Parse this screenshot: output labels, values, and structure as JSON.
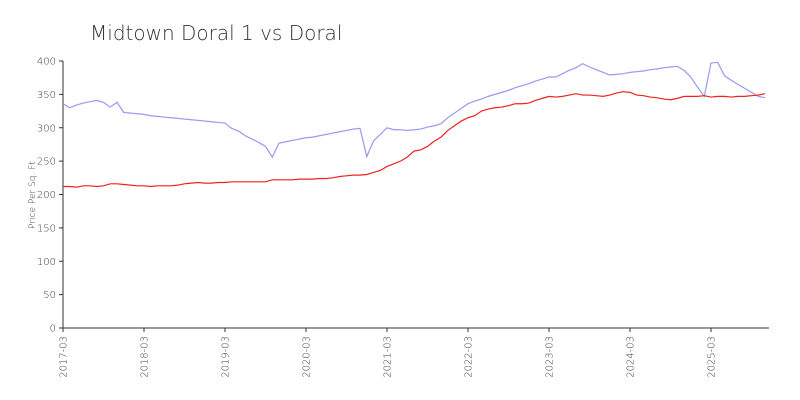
{
  "chart_data": {
    "type": "line",
    "title": "Midtown Doral 1 vs Doral",
    "y_label": "Price Per Sq. Ft",
    "categories": [
      "2017-03",
      null,
      null,
      null,
      null,
      null,
      null,
      null,
      null,
      null,
      null,
      null,
      "2018-03",
      null,
      null,
      null,
      null,
      null,
      null,
      null,
      null,
      null,
      null,
      null,
      "2019-03",
      null,
      null,
      null,
      null,
      null,
      null,
      null,
      null,
      null,
      null,
      null,
      "2020-03",
      null,
      null,
      null,
      null,
      null,
      null,
      null,
      null,
      null,
      null,
      null,
      "2021-03",
      null,
      null,
      null,
      null,
      null,
      null,
      null,
      null,
      null,
      null,
      null,
      "2022-03",
      null,
      null,
      null,
      null,
      null,
      null,
      null,
      null,
      null,
      null,
      null,
      "2023-03",
      null,
      null,
      null,
      null,
      null,
      null,
      null,
      null,
      null,
      null,
      null,
      "2024-03",
      null,
      null,
      null,
      null,
      null,
      null,
      null,
      null,
      null,
      null,
      null,
      "2025-03",
      null,
      null,
      null,
      null,
      null,
      null,
      null,
      null
    ],
    "series": [
      {
        "color": "#9999ee",
        "values": [
          336,
          330,
          334,
          337,
          339,
          341,
          338,
          331,
          338,
          323,
          322,
          321,
          320,
          318,
          317,
          316,
          315,
          314,
          313,
          312,
          311,
          310,
          309,
          308,
          307,
          299,
          295,
          288,
          283,
          278,
          272,
          256,
          277,
          279,
          281,
          283,
          285,
          286,
          288,
          290,
          292,
          294,
          296,
          298,
          299,
          257,
          280,
          290,
          300,
          297,
          297,
          296,
          297,
          298,
          301,
          303,
          306,
          315,
          322,
          329,
          336,
          340,
          343,
          347,
          350,
          353,
          356,
          360,
          363,
          366,
          370,
          373,
          376,
          376,
          381,
          386,
          390,
          396,
          391,
          387,
          383,
          379,
          380,
          381,
          383,
          384,
          385,
          387,
          388,
          390,
          391,
          392,
          386,
          376,
          361,
          347,
          397,
          398,
          378,
          371,
          365,
          359,
          353,
          347,
          345
        ]
      },
      {
        "color": "#ee2222",
        "values": [
          212,
          212,
          211,
          213,
          213,
          212,
          213,
          216,
          216,
          215,
          214,
          213,
          213,
          212,
          213,
          213,
          213,
          214,
          216,
          217,
          218,
          217,
          217,
          218,
          218,
          219,
          219,
          219,
          219,
          219,
          219,
          222,
          222,
          222,
          222,
          223,
          223,
          223,
          224,
          224,
          225,
          227,
          228,
          229,
          229,
          230,
          233,
          236,
          242,
          246,
          250,
          256,
          265,
          267,
          272,
          280,
          286,
          296,
          303,
          310,
          315,
          318,
          325,
          328,
          330,
          331,
          333,
          336,
          336,
          337,
          341,
          344,
          347,
          346,
          347,
          349,
          351,
          349,
          349,
          348,
          347,
          349,
          352,
          354,
          353,
          349,
          348,
          346,
          345,
          343,
          342,
          344,
          347,
          347,
          347,
          348,
          346,
          347,
          347,
          346,
          347,
          347,
          348,
          349,
          351
        ]
      }
    ],
    "ylim": [
      0,
      400
    ],
    "yticks": [
      0,
      50,
      100,
      150,
      200,
      250,
      300,
      350,
      400
    ]
  }
}
